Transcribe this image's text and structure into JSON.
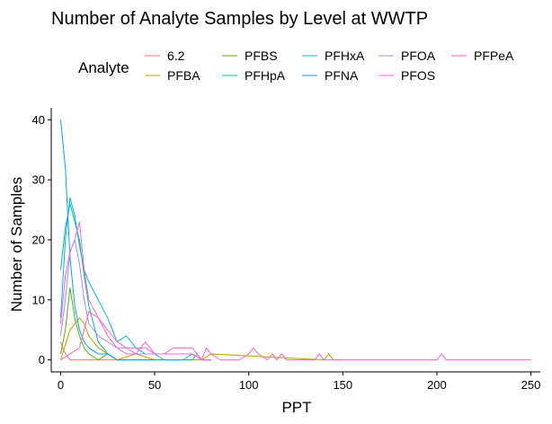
{
  "chart_data": {
    "type": "line",
    "title": "Number of Analyte Samples by Level at WWTP",
    "xlabel": "PPT",
    "ylabel": "Number of Samples",
    "xlim": [
      -5,
      255
    ],
    "ylim": [
      -2,
      42
    ],
    "xticks": [
      0,
      50,
      100,
      150,
      200,
      250
    ],
    "yticks": [
      0,
      10,
      20,
      30,
      40
    ],
    "grid": false,
    "legend": {
      "title": "Analyte",
      "position": "top"
    },
    "series": [
      {
        "name": "6.2",
        "color": "#F8766D",
        "x": [
          0,
          2.5,
          5,
          7.5,
          10,
          12.5,
          15,
          20,
          25,
          30
        ],
        "y": [
          3,
          1,
          0,
          0,
          0,
          0,
          0,
          0,
          0,
          0
        ]
      },
      {
        "name": "PFBA",
        "color": "#C49A00",
        "x": [
          0,
          5,
          7.5,
          10,
          12.5,
          15,
          20,
          25,
          30,
          40,
          50,
          60,
          70,
          75,
          80,
          140,
          142.5,
          145,
          150
        ],
        "y": [
          0,
          5,
          6,
          7,
          6,
          4,
          2,
          1,
          0,
          1,
          0,
          0,
          0,
          0,
          1,
          0,
          1,
          0,
          0
        ]
      },
      {
        "name": "PFBS",
        "color": "#53B400",
        "x": [
          0,
          2.5,
          5,
          7.5,
          10,
          12.5,
          15,
          20,
          25,
          30,
          35
        ],
        "y": [
          1,
          5,
          12,
          7,
          4,
          2,
          1,
          0,
          1,
          0,
          0
        ]
      },
      {
        "name": "PFHpA",
        "color": "#00C094",
        "x": [
          0,
          2.5,
          5,
          7.5,
          10,
          12.5,
          15,
          20,
          25,
          30,
          40,
          50,
          70,
          72.5,
          75,
          80
        ],
        "y": [
          15,
          22,
          26,
          23,
          20,
          14,
          9,
          3,
          1,
          0,
          0,
          0,
          0,
          1,
          0,
          0
        ]
      },
      {
        "name": "PFHxA",
        "color": "#00B6EB",
        "x": [
          0,
          2.5,
          5,
          7.5,
          10,
          12.5,
          15,
          20,
          25,
          30,
          35,
          40,
          45,
          50,
          55,
          60,
          65,
          70,
          75,
          80
        ],
        "y": [
          7,
          20,
          27,
          24,
          19,
          15,
          13,
          10,
          7,
          3,
          4,
          2,
          1,
          1,
          0,
          0,
          0,
          1,
          0,
          0
        ]
      },
      {
        "name": "PFNA",
        "color": "#00A5FF",
        "x": [
          0,
          2.5,
          5,
          7.5,
          10,
          12.5,
          15,
          20,
          25,
          30,
          40,
          50
        ],
        "y": [
          40,
          32,
          17,
          9,
          5,
          3,
          2,
          1,
          1,
          0,
          0,
          0
        ]
      },
      {
        "name": "PFOA",
        "color": "#A58AFF",
        "x": [
          0,
          2.5,
          5,
          7.5,
          10,
          12.5,
          15,
          20,
          25,
          30,
          35,
          40,
          45,
          50,
          55,
          60,
          65,
          70,
          75,
          80
        ],
        "y": [
          4,
          10,
          18,
          20,
          16,
          10,
          6,
          4,
          3,
          2,
          2,
          1,
          1,
          1,
          1,
          1,
          1,
          1,
          0,
          0
        ]
      },
      {
        "name": "PFOS",
        "color": "#FB61D7",
        "x": [
          0,
          2.5,
          5,
          7.5,
          10,
          12.5,
          15,
          20,
          25,
          30,
          35,
          40,
          45,
          50,
          55,
          60,
          65,
          70,
          75,
          80
        ],
        "y": [
          6,
          14,
          18,
          20,
          23,
          15,
          10,
          7,
          5,
          3,
          2,
          2,
          2,
          1,
          1,
          1,
          1,
          1,
          0,
          0
        ]
      },
      {
        "name": "PFPeA",
        "color": "#FF61C3",
        "x": [
          0,
          5,
          10,
          15,
          20,
          25,
          30,
          35,
          40,
          45,
          50,
          55,
          60,
          65,
          70,
          75,
          77.5,
          80,
          85,
          90,
          95,
          100,
          102.5,
          105,
          110,
          112.5,
          115,
          117.5,
          120,
          130,
          135,
          137.5,
          140,
          145,
          150,
          200,
          202.5,
          205,
          210,
          250
        ],
        "y": [
          0,
          1,
          2,
          8,
          7,
          4,
          2,
          1,
          1,
          3,
          1,
          1,
          2,
          2,
          2,
          0,
          2,
          1,
          0,
          0,
          0,
          1,
          2,
          1,
          0,
          1,
          0,
          1,
          0,
          0,
          0,
          1,
          0,
          0,
          0,
          0,
          1,
          0,
          0,
          0
        ]
      }
    ]
  }
}
